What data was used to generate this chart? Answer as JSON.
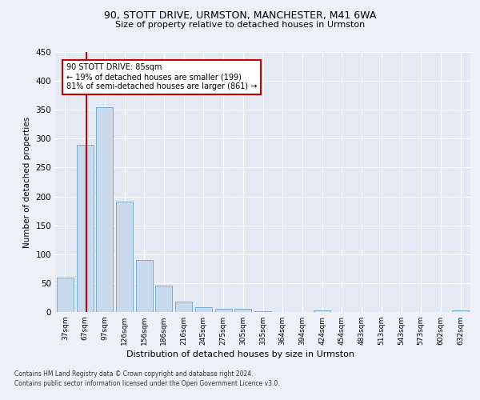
{
  "title1": "90, STOTT DRIVE, URMSTON, MANCHESTER, M41 6WA",
  "title2": "Size of property relative to detached houses in Urmston",
  "xlabel": "Distribution of detached houses by size in Urmston",
  "ylabel": "Number of detached properties",
  "bin_labels": [
    "37sqm",
    "67sqm",
    "97sqm",
    "126sqm",
    "156sqm",
    "186sqm",
    "216sqm",
    "245sqm",
    "275sqm",
    "305sqm",
    "335sqm",
    "364sqm",
    "394sqm",
    "424sqm",
    "454sqm",
    "483sqm",
    "513sqm",
    "543sqm",
    "573sqm",
    "602sqm",
    "632sqm"
  ],
  "bar_values": [
    59,
    289,
    354,
    191,
    90,
    46,
    18,
    9,
    5,
    5,
    1,
    0,
    0,
    3,
    0,
    0,
    0,
    0,
    0,
    0,
    3
  ],
  "bar_color": "#c9d9ec",
  "bar_edge_color": "#7bafd4",
  "annotation_text": "90 STOTT DRIVE: 85sqm\n← 19% of detached houses are smaller (199)\n81% of semi-detached houses are larger (861) →",
  "annotation_box_color": "#ffffff",
  "annotation_box_edge": "#cc0000",
  "ylim": [
    0,
    450
  ],
  "yticks": [
    0,
    50,
    100,
    150,
    200,
    250,
    300,
    350,
    400,
    450
  ],
  "footer1": "Contains HM Land Registry data © Crown copyright and database right 2024.",
  "footer2": "Contains public sector information licensed under the Open Government Licence v3.0.",
  "background_color": "#eef2f8",
  "plot_bg_color": "#e4eaf4"
}
